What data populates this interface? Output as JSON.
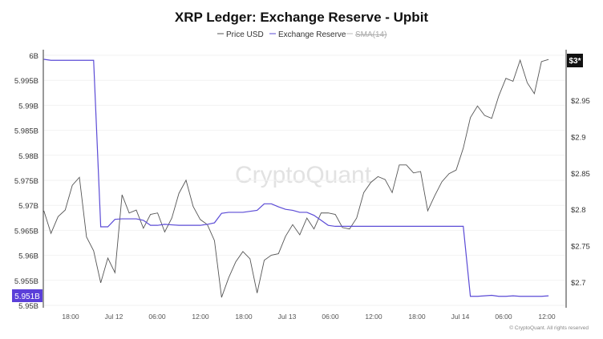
{
  "chart_data": {
    "type": "line",
    "title": "XRP Ledger: Exchange Reserve - Upbit",
    "legend": [
      "Price USD",
      "Exchange Reserve",
      "SMA(14)"
    ],
    "legend_placement": "top-center",
    "x_start": "Jul 11 14:00",
    "x_interval_hours": 1,
    "x_ticks": [
      "18:00",
      "Jul 12",
      "06:00",
      "12:00",
      "18:00",
      "Jul 13",
      "06:00",
      "12:00",
      "18:00",
      "Jul 14",
      "06:00",
      "12:00"
    ],
    "left_axis": {
      "ticks": [
        "6B",
        "5.995B",
        "5.99B",
        "5.985B",
        "5.98B",
        "5.975B",
        "5.97B",
        "5.965B",
        "5.96B",
        "5.955B",
        "5.95B"
      ],
      "ylim_billions": [
        5.95,
        6.0
      ],
      "current_label": "5.951B"
    },
    "right_axis": {
      "ticks": [
        "$2.95",
        "$2.9",
        "$2.85",
        "$2.8",
        "$2.75",
        "$2.7"
      ],
      "ylim_usd": [
        2.67,
        3.01
      ],
      "current_label": "$3*"
    },
    "grid": true,
    "series": [
      {
        "name": "Price USD",
        "axis": "right",
        "color": "#555555",
        "values": [
          2.798,
          2.767,
          2.79,
          2.799,
          2.833,
          2.844,
          2.762,
          2.743,
          2.699,
          2.733,
          2.713,
          2.82,
          2.795,
          2.799,
          2.774,
          2.793,
          2.795,
          2.769,
          2.788,
          2.822,
          2.84,
          2.804,
          2.786,
          2.779,
          2.757,
          2.679,
          2.706,
          2.728,
          2.742,
          2.732,
          2.685,
          2.73,
          2.737,
          2.739,
          2.763,
          2.779,
          2.765,
          2.788,
          2.773,
          2.795,
          2.795,
          2.793,
          2.775,
          2.773,
          2.788,
          2.823,
          2.837,
          2.845,
          2.841,
          2.823,
          2.861,
          2.861,
          2.85,
          2.852,
          2.798,
          2.819,
          2.838,
          2.849,
          2.854,
          2.884,
          2.926,
          2.942,
          2.929,
          2.925,
          2.956,
          2.98,
          2.976,
          3.005,
          2.974,
          2.959,
          3.003,
          3.006
        ]
      },
      {
        "name": "Exchange Reserve",
        "axis": "left",
        "color": "#5b4bd6",
        "values": [
          5.9992,
          5.999,
          5.999,
          5.999,
          5.999,
          5.999,
          5.999,
          5.999,
          5.9657,
          5.9657,
          5.9672,
          5.9673,
          5.9673,
          5.9673,
          5.967,
          5.966,
          5.966,
          5.9662,
          5.9661,
          5.966,
          5.966,
          5.966,
          5.966,
          5.9662,
          5.9665,
          5.9684,
          5.9686,
          5.9686,
          5.9686,
          5.9688,
          5.969,
          5.9703,
          5.9703,
          5.9697,
          5.9692,
          5.969,
          5.9686,
          5.9686,
          5.968,
          5.967,
          5.966,
          5.9658,
          5.9658,
          5.9658,
          5.9658,
          5.9658,
          5.9658,
          5.9658,
          5.9658,
          5.9658,
          5.9658,
          5.9658,
          5.9658,
          5.9658,
          5.9658,
          5.9658,
          5.9658,
          5.9658,
          5.9658,
          5.9658,
          5.9518,
          5.9518,
          5.9519,
          5.952,
          5.9518,
          5.9518,
          5.9519,
          5.9518,
          5.9518,
          5.9518,
          5.9518,
          5.9519
        ]
      }
    ],
    "watermark": "CryptoQuant",
    "footer": "© CryptoQuant. All rights reserved"
  }
}
